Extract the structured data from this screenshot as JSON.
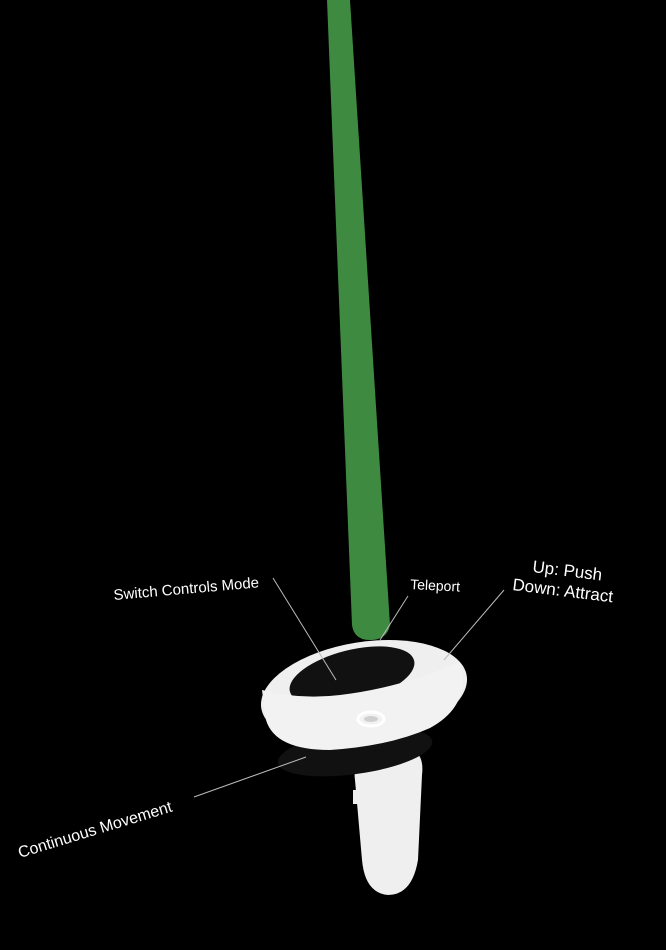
{
  "scene": {
    "background_color": "#000000",
    "pointer_ray_color": "#3f8a41",
    "controller_color": "#efefef",
    "controller_shadow_color": "#111111"
  },
  "labels": {
    "switch_controls_mode": "Switch Controls Mode",
    "teleport": "Teleport",
    "thumbstick_up": "Up: Push",
    "thumbstick_down": "Down: Attract",
    "continuous_movement": "Continuous Movement"
  },
  "icons": {
    "controller": "vr-controller-icon",
    "ray": "pointer-ray"
  }
}
